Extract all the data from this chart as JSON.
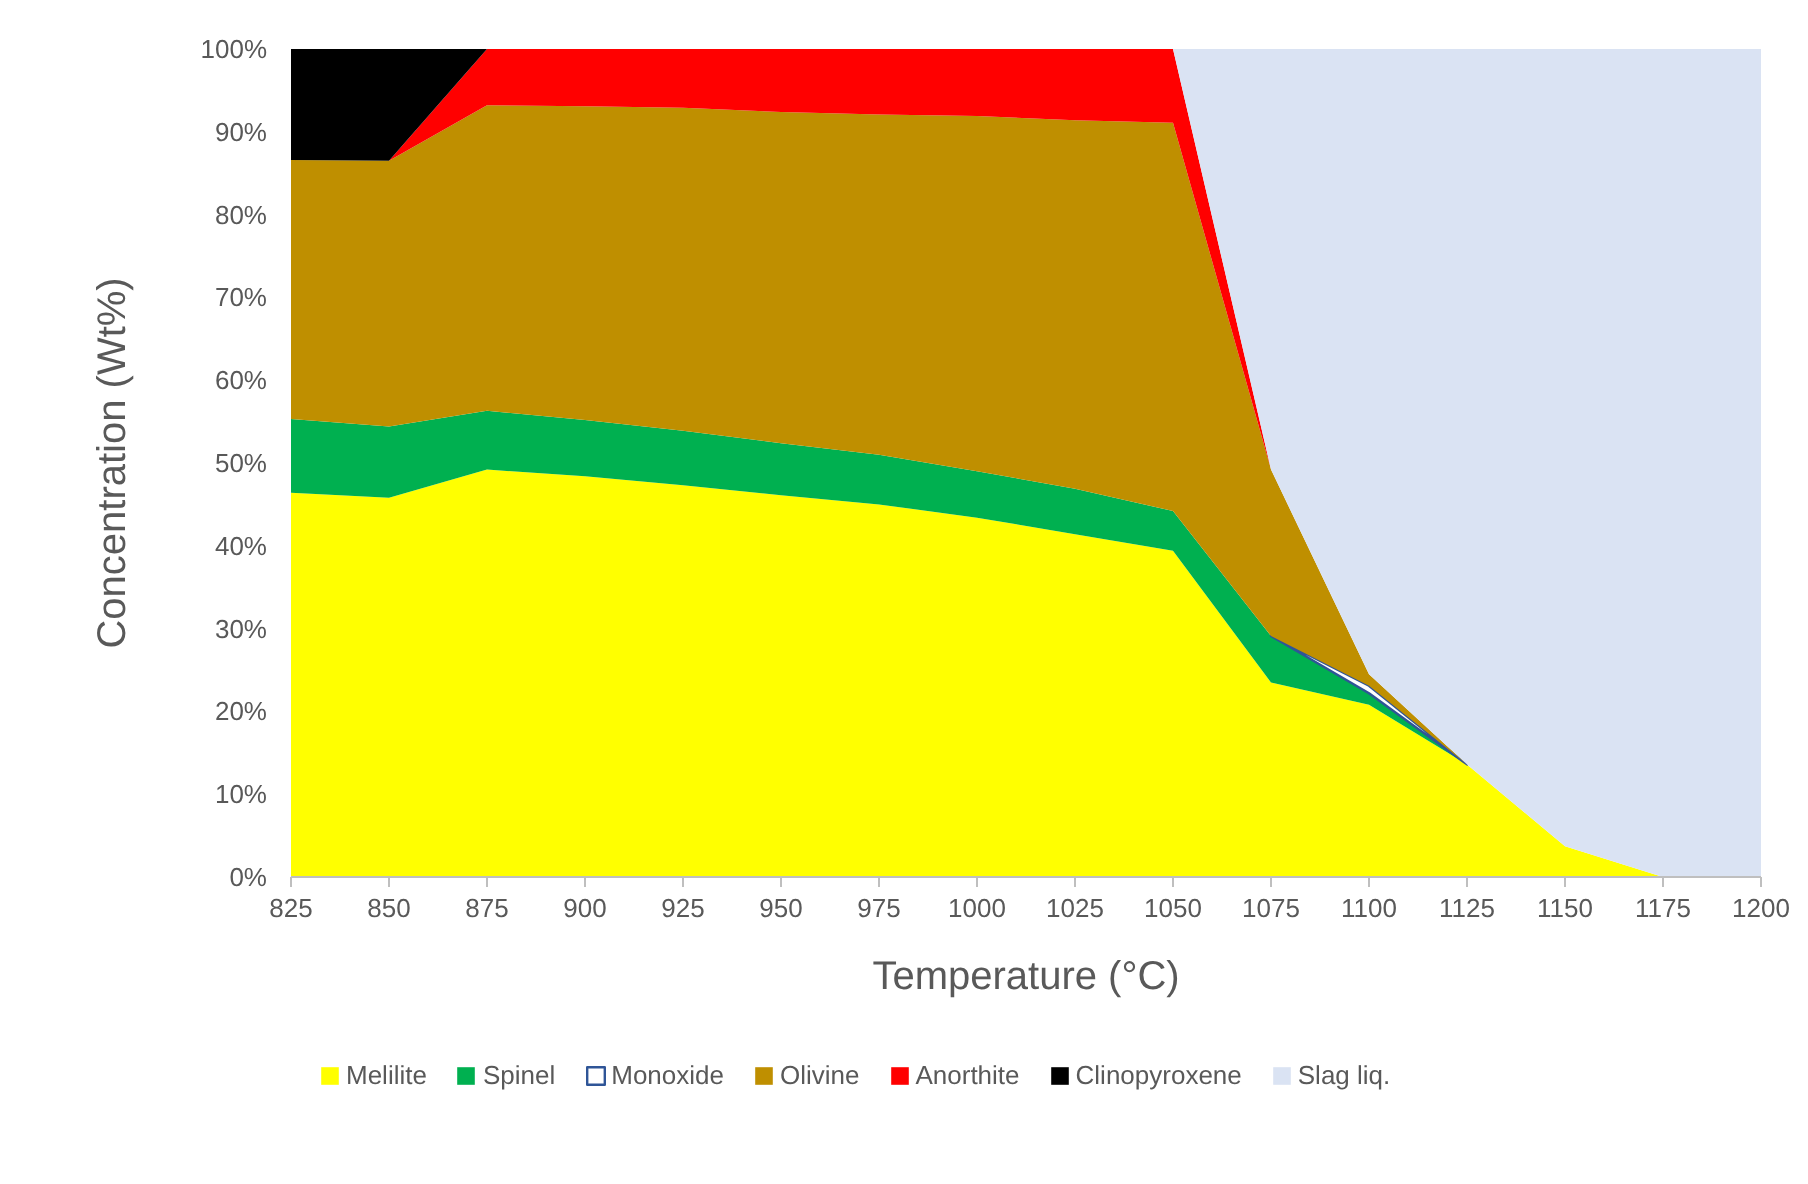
{
  "chart_data": {
    "type": "area",
    "stacked": true,
    "xlabel": "Temperature (°C)",
    "ylabel": "Concentration (Wt%)",
    "x": [
      825,
      850,
      875,
      900,
      925,
      950,
      975,
      1000,
      1025,
      1050,
      1075,
      1100,
      1125,
      1150,
      1175,
      1200
    ],
    "xlim": [
      825,
      1200
    ],
    "xticks": [
      825,
      850,
      875,
      900,
      925,
      950,
      975,
      1000,
      1025,
      1050,
      1075,
      1100,
      1125,
      1150,
      1175,
      1200
    ],
    "ylim": [
      0,
      100
    ],
    "yticks": [
      {
        "value": 0,
        "label": "0%"
      },
      {
        "value": 10,
        "label": "10%"
      },
      {
        "value": 20,
        "label": "20%"
      },
      {
        "value": 30,
        "label": "30%"
      },
      {
        "value": 40,
        "label": "40%"
      },
      {
        "value": 50,
        "label": "50%"
      },
      {
        "value": 60,
        "label": "60%"
      },
      {
        "value": 70,
        "label": "70%"
      },
      {
        "value": 80,
        "label": "80%"
      },
      {
        "value": 90,
        "label": "90%"
      },
      {
        "value": 100,
        "label": "100%"
      }
    ],
    "grid": false,
    "legend": "bottom",
    "series": [
      {
        "name": "Melilite",
        "color": "#ffff00",
        "values": [
          46.4,
          45.8,
          49.2,
          48.4,
          47.3,
          46.1,
          45.0,
          43.4,
          41.4,
          39.4,
          23.5,
          20.8,
          13.6,
          3.7,
          0,
          null
        ]
      },
      {
        "name": "Spinel",
        "color": "#00b050",
        "values": [
          8.9,
          8.6,
          7.1,
          6.8,
          6.6,
          6.3,
          6.0,
          5.6,
          5.5,
          4.8,
          5.6,
          1.4,
          0,
          null,
          null,
          null
        ]
      },
      {
        "name": "Monoxide",
        "color": "#ffffff",
        "values": [
          null,
          null,
          null,
          null,
          null,
          null,
          null,
          null,
          null,
          null,
          0,
          0.9,
          0,
          null,
          null,
          null
        ]
      },
      {
        "name": "Olivine",
        "color": "#bf8f00",
        "values": [
          31.3,
          32.1,
          36.9,
          37.9,
          39.0,
          40.0,
          41.1,
          42.9,
          44.5,
          46.9,
          20.1,
          1.4,
          0,
          null,
          null,
          null
        ]
      },
      {
        "name": "Anorthite",
        "color": "#ff0000",
        "values": [
          null,
          0,
          6.8,
          6.9,
          7.1,
          7.6,
          7.9,
          8.1,
          8.6,
          8.9,
          0,
          null,
          null,
          null,
          null,
          null
        ]
      },
      {
        "name": "Clinopyroxene",
        "color": "#000000",
        "values": [
          13.4,
          13.5,
          0,
          null,
          null,
          null,
          null,
          null,
          null,
          null,
          null,
          null,
          null,
          null,
          null,
          null
        ]
      },
      {
        "name": "Slag liq.",
        "color": "#dae3f3",
        "values": [
          null,
          null,
          null,
          null,
          null,
          null,
          null,
          null,
          null,
          0,
          50.8,
          75.5,
          86.4,
          96.3,
          100,
          100
        ]
      }
    ]
  }
}
